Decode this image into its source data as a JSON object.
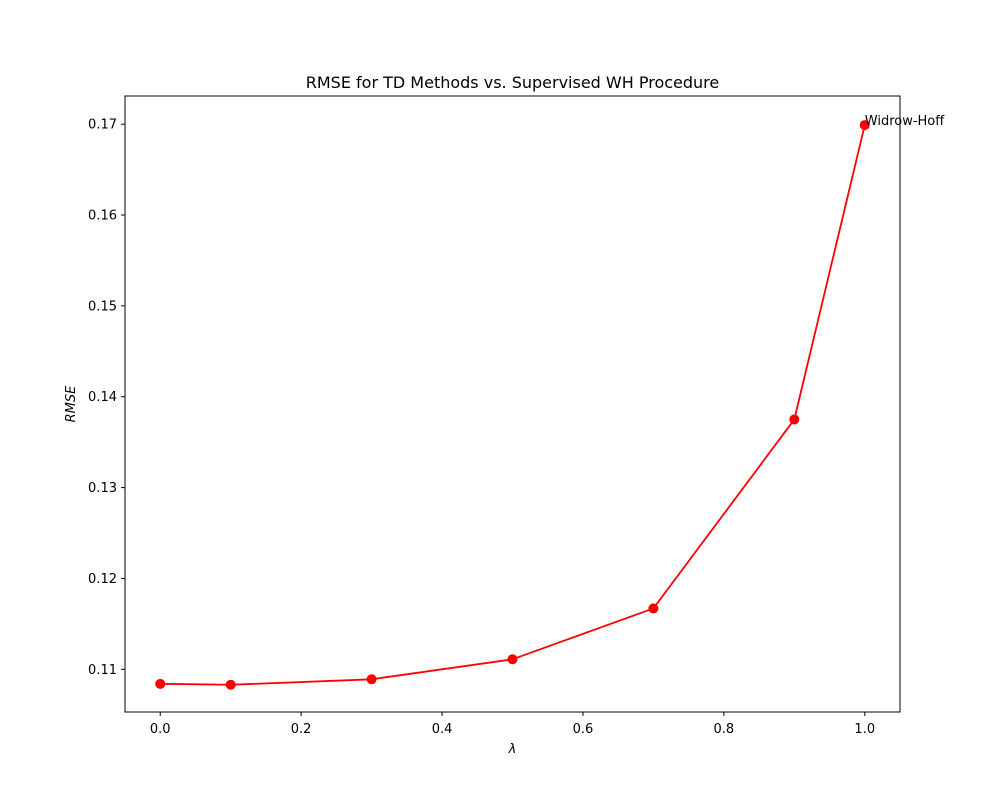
{
  "chart_data": {
    "type": "line",
    "title": "RMSE for TD Methods vs. Supervised WH Procedure",
    "xlabel": "λ",
    "ylabel": "RMSE",
    "xlim": [
      -0.05,
      1.05
    ],
    "ylim": [
      0.1053,
      0.1731
    ],
    "x_ticks": [
      0.0,
      0.2,
      0.4,
      0.6,
      0.8,
      1.0
    ],
    "x_tick_labels": [
      "0.0",
      "0.2",
      "0.4",
      "0.6",
      "0.8",
      "1.0"
    ],
    "y_ticks": [
      0.11,
      0.12,
      0.13,
      0.14,
      0.15,
      0.16,
      0.17
    ],
    "y_tick_labels": [
      "0.11",
      "0.12",
      "0.13",
      "0.14",
      "0.15",
      "0.16",
      "0.17"
    ],
    "grid": false,
    "series": [
      {
        "color": "#ff0000",
        "marker": "circle",
        "x": [
          0.0,
          0.1,
          0.3,
          0.5,
          0.7,
          0.9,
          1.0
        ],
        "y": [
          0.1084,
          0.1083,
          0.1089,
          0.1111,
          0.1167,
          0.1375,
          0.1699
        ]
      }
    ],
    "annotations": [
      {
        "text": "Widrow-Hoff",
        "x": 1.0,
        "y": 0.1699
      }
    ]
  }
}
